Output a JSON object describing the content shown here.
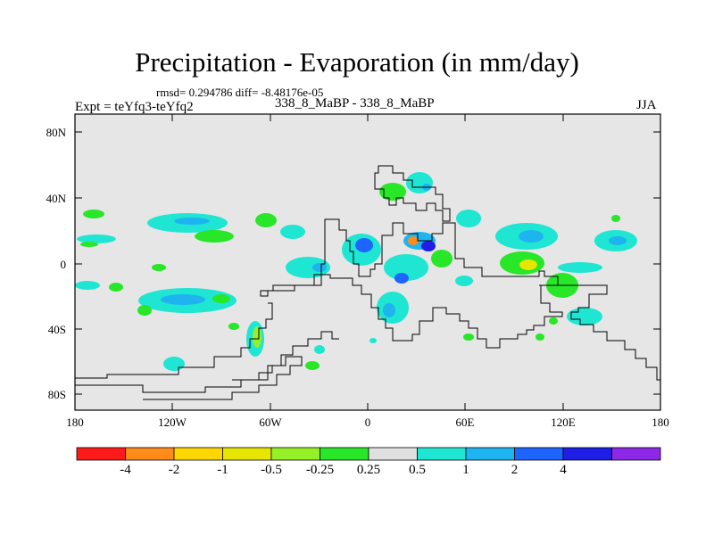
{
  "title": "Precipitation - Evaporation (in mm/day)",
  "stats": "rmsd= 0.294786  diff= -8.48176e-05",
  "expt": "Expt = teYfq3-teYfq2",
  "difference_label": "338_8_MaBP - 338_8_MaBP",
  "season": "JJA",
  "lat_labels": [
    "80N",
    "40N",
    "0",
    "40S",
    "80S"
  ],
  "lon_labels": [
    "180",
    "120W",
    "60W",
    "0",
    "60E",
    "120E",
    "180"
  ],
  "colorbar": {
    "colors": [
      "#ff1a1a",
      "#ff8c1a",
      "#ffd700",
      "#e6e600",
      "#96f028",
      "#28e628",
      "#e0e0e0",
      "#1ee6d2",
      "#1eb4f0",
      "#1e64ff",
      "#1e1ee6",
      "#8c28e6"
    ],
    "labels": [
      "-4",
      "-2",
      "-1",
      "-0.5",
      "-0.25",
      "0.25",
      "0.5",
      "1",
      "2",
      "4"
    ]
  },
  "colors": {
    "background": "#e6e6e6",
    "coast": "#000000"
  }
}
